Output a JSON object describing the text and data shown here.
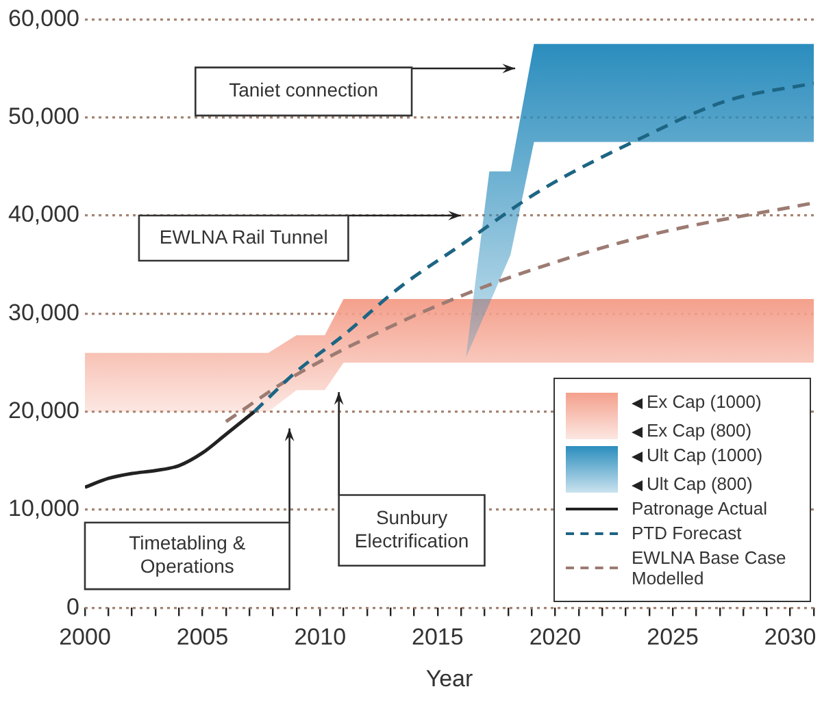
{
  "chart_data": {
    "type": "line",
    "xlabel": "Year",
    "xlim": [
      2000,
      2031
    ],
    "xticks": [
      2000,
      {
        "value": 2001,
        "label": null
      },
      {
        "value": 2002,
        "label": null
      },
      {
        "value": 2003,
        "label": null
      },
      {
        "value": 2004,
        "label": null
      },
      2005,
      {
        "value": 2006,
        "label": null
      },
      {
        "value": 2007,
        "label": null
      },
      {
        "value": 2008,
        "label": null
      },
      {
        "value": 2009,
        "label": null
      },
      2010,
      {
        "value": 2011,
        "label": null
      },
      {
        "value": 2012,
        "label": null
      },
      {
        "value": 2013,
        "label": null
      },
      {
        "value": 2014,
        "label": null
      },
      2015,
      {
        "value": 2016,
        "label": null
      },
      {
        "value": 2017,
        "label": null
      },
      {
        "value": 2018,
        "label": null
      },
      {
        "value": 2019,
        "label": null
      },
      2020,
      {
        "value": 2021,
        "label": null
      },
      {
        "value": 2022,
        "label": null
      },
      {
        "value": 2023,
        "label": null
      },
      {
        "value": 2024,
        "label": null
      },
      2025,
      {
        "value": 2026,
        "label": null
      },
      {
        "value": 2027,
        "label": null
      },
      {
        "value": 2028,
        "label": null
      },
      {
        "value": 2029,
        "label": null
      },
      2030,
      {
        "value": 2031,
        "label": null
      }
    ],
    "ylim": [
      0,
      60000
    ],
    "yticks": [
      0,
      {
        "value": 10000,
        "label": "10,000"
      },
      {
        "value": 20000,
        "label": "20,000"
      },
      {
        "value": 30000,
        "label": "30,000"
      },
      {
        "value": 40000,
        "label": "40,000"
      },
      {
        "value": 50000,
        "label": "50,000"
      },
      {
        "value": 60000,
        "label": "60,000"
      }
    ],
    "grid": "y",
    "legend": "bottom right",
    "series": [
      {
        "type": "area",
        "color": "#f4a08c",
        "x": [
          2000,
          2007.8,
          2009,
          2010.2,
          2011,
          2031
        ],
        "values": [
          null,
          null,
          null,
          null,
          null,
          null
        ],
        "upper": [
          26000,
          26000,
          27800,
          27800,
          31500,
          31500
        ],
        "lower": [
          20000,
          20000,
          22200,
          22200,
          25000,
          25000
        ]
      },
      {
        "type": "area",
        "color": "#2b8dbd",
        "x": [
          2016.2,
          2017.2,
          2018.1,
          2019.1,
          2031
        ],
        "values": [
          null,
          null,
          null,
          null,
          null
        ],
        "upper": [
          25500,
          44500,
          44500,
          57500,
          57500
        ],
        "lower": [
          25500,
          31000,
          36000,
          47500,
          47500
        ]
      },
      {
        "name": "Patronage Actual",
        "color": "#222222",
        "line_style": "solid",
        "x": [
          2000,
          2001,
          2002,
          2003,
          2004,
          2005,
          2006,
          2007.2
        ],
        "values": [
          12300,
          13200,
          13700,
          14000,
          14500,
          15800,
          17700,
          20000
        ]
      },
      {
        "name": "PTD Forecast",
        "color": "#1d6584",
        "line_style": "dashed",
        "x": [
          2007.2,
          2009,
          2011,
          2013.4,
          2016,
          2019.4,
          2023.4,
          2027.3,
          2031
        ],
        "values": [
          20000,
          24100,
          27800,
          32700,
          37000,
          42600,
          47600,
          51700,
          53500
        ]
      },
      {
        "name": "EWLNA Base Case Modelled",
        "color": "#9c7b72",
        "line_style": "dashed",
        "x": [
          2006,
          2008.8,
          2013.2,
          2016.2,
          2018.8,
          2024,
          2031
        ],
        "values": [
          19000,
          23500,
          28900,
          32000,
          34300,
          38000,
          41300
        ]
      }
    ],
    "annotations": [
      "Taniet connection",
      "EWLNA Rail Tunnel",
      "Timetabling & Operations",
      "Sunbury Electrification",
      "Ex Cap (1000)",
      "Ex Cap (800)",
      "Ult Cap (1000)",
      "Ult Cap (800)"
    ]
  }
}
